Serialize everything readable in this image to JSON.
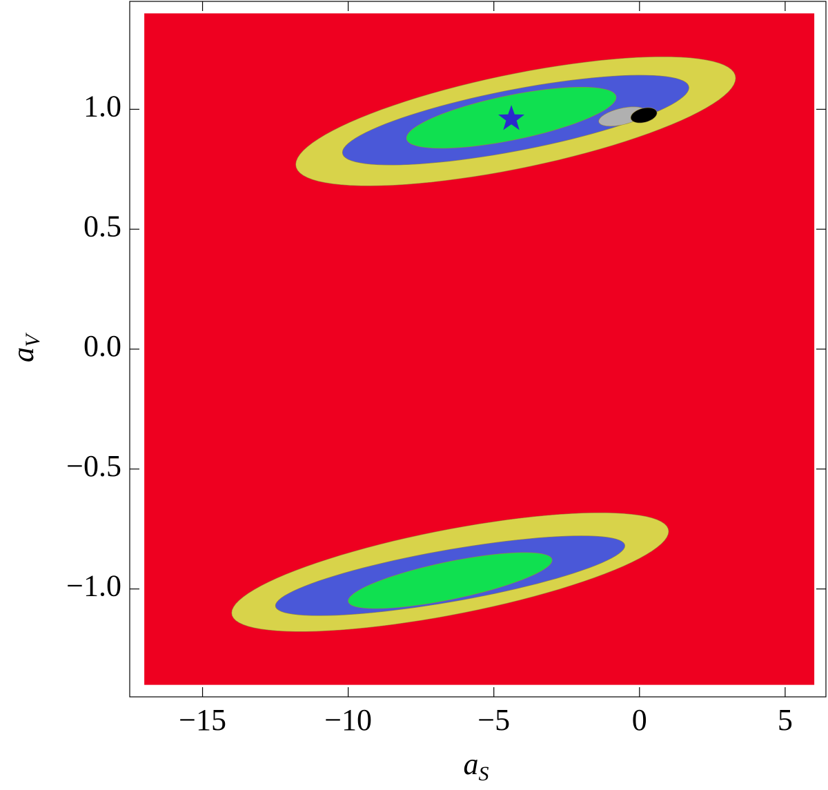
{
  "chart_data": {
    "type": "contour",
    "x_label": {
      "text": "a",
      "sub": "S"
    },
    "y_label": {
      "text": "a",
      "sub": "V"
    },
    "xlim": [
      -17.5,
      6.4
    ],
    "ylim": [
      -1.45,
      1.45
    ],
    "xticks": [
      {
        "value": -15,
        "label": "−15"
      },
      {
        "value": -10,
        "label": "−10"
      },
      {
        "value": -5,
        "label": "−5"
      },
      0,
      5
    ],
    "yticks": [
      {
        "value": -1,
        "label": "−1.0"
      },
      {
        "value": -0.5,
        "label": "−0.5"
      },
      {
        "value": 0,
        "label": "0.0"
      },
      {
        "value": 0.5,
        "label": "0.5"
      },
      {
        "value": 1,
        "label": "1.0"
      }
    ],
    "background_region": {
      "color": "#ee0020",
      "x": [
        -17,
        6
      ],
      "y": [
        -1.4,
        1.4
      ]
    },
    "regions": [
      {
        "color": "#d8d34a",
        "center": [
          -4.25,
          0.95
        ],
        "major_end": [
          3.3,
          1.13
        ],
        "half_height": 0.2
      },
      {
        "color": "#4a58d8",
        "center": [
          -4.25,
          0.955
        ],
        "major_end": [
          1.7,
          1.09
        ],
        "half_height": 0.13
      },
      {
        "color": "#10e050",
        "center": [
          -4.4,
          0.965
        ],
        "major_end": [
          -0.8,
          1.05
        ],
        "half_height": 0.095
      },
      {
        "color": "#b0b0b0",
        "center": [
          -0.6,
          0.97
        ],
        "major_end": [
          0.2,
          0.99
        ],
        "half_height": 0.035
      },
      {
        "color": "#000000",
        "center": [
          0.15,
          0.975
        ],
        "major_end": [
          0.6,
          0.985
        ],
        "half_height": 0.03
      },
      {
        "color": "#d8d34a",
        "center": [
          -6.5,
          -0.93
        ],
        "major_end": [
          1.0,
          -0.76
        ],
        "half_height": 0.18
      },
      {
        "color": "#4a58d8",
        "center": [
          -6.5,
          -0.945
        ],
        "major_end": [
          -0.5,
          -0.82
        ],
        "half_height": 0.11
      },
      {
        "color": "#10e050",
        "center": [
          -6.5,
          -0.965
        ],
        "major_end": [
          -3.0,
          -0.88
        ],
        "half_height": 0.08
      }
    ],
    "marker": {
      "symbol": "star",
      "x": -4.4,
      "y": 0.96,
      "color": "#2a2acc"
    }
  }
}
